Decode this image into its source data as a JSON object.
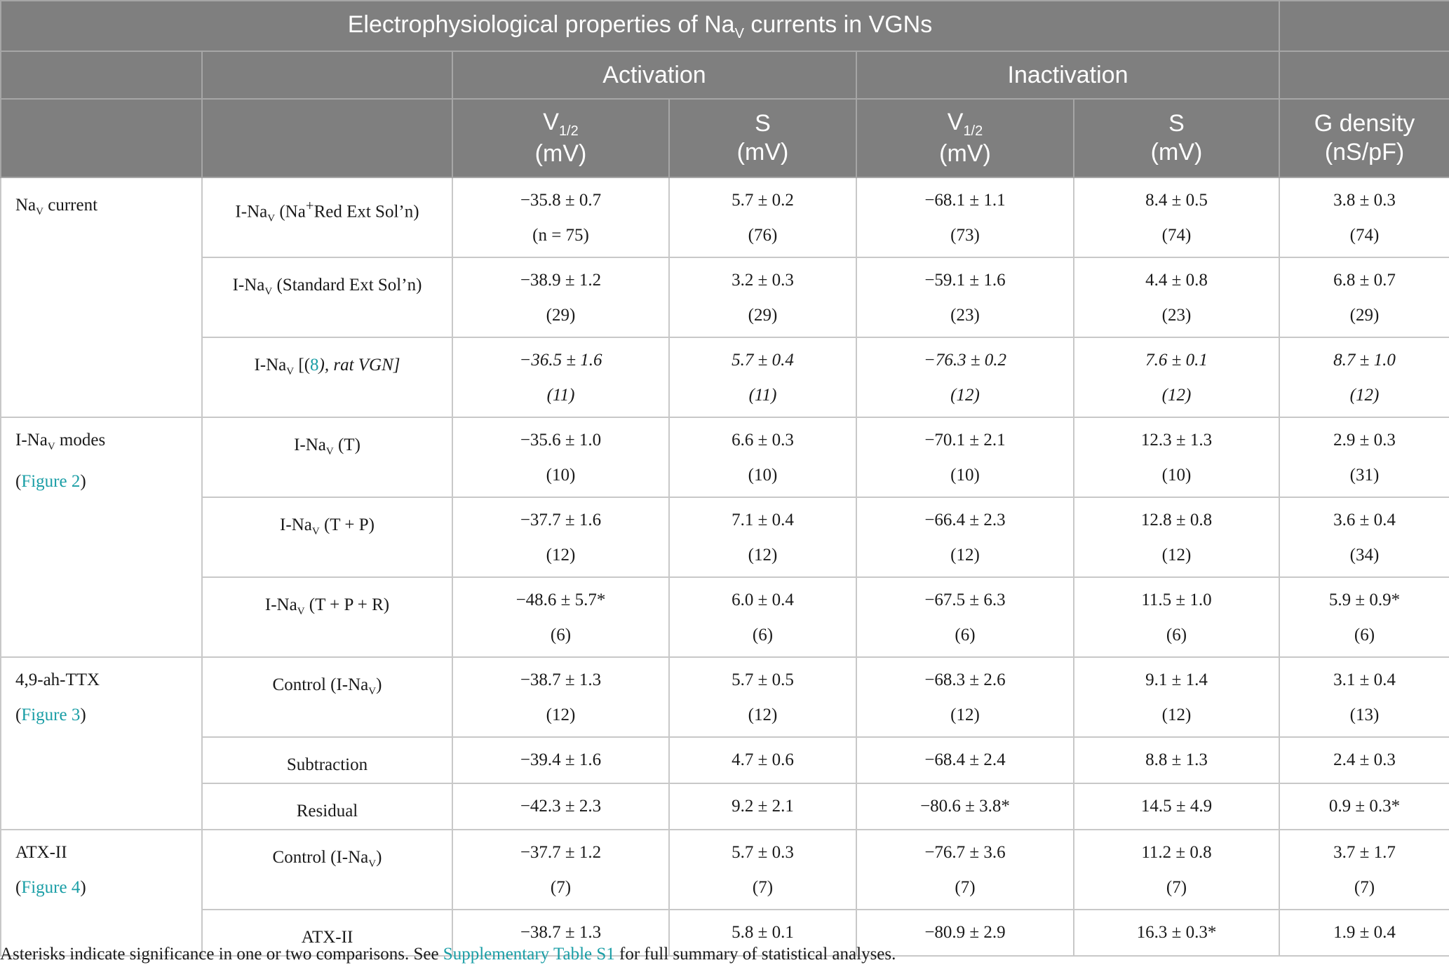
{
  "table": {
    "title": "Electrophysiological properties of Na",
    "title_sub": "V",
    "title_rest": " currents in VGNs",
    "group_activation": "Activation",
    "group_inactivation": "Inactivation",
    "col_v_main": "V",
    "col_v_sub": "1/2",
    "col_mv": "(mV)",
    "col_s": "S",
    "col_g": "G density",
    "col_g_unit": "(nS/pF)"
  },
  "groups": {
    "nav_current": {
      "label": "Na",
      "sub": "V",
      "rest": " current"
    },
    "modes": {
      "line1": "I-Na",
      "sub": "V",
      "rest": " modes",
      "link_open": "(",
      "link": "Figure 2",
      "link_close": ")"
    },
    "ttx": {
      "line1": "4,9-ah-TTX",
      "link_open": "(",
      "link": "Figure 3",
      "link_close": ")"
    },
    "atx": {
      "line1": "ATX-II",
      "link_open": "(",
      "link": "Figure 4",
      "link_close": ")"
    }
  },
  "rows": {
    "r1": {
      "pre": "I-Na",
      "sub": "V",
      "post": " (Na",
      "sup": "+",
      "post2": "Red Ext Sol’n)",
      "vals": [
        "−35.8 ± 0.7",
        "5.7 ± 0.2",
        "−68.1 ± 1.1",
        "8.4 ± 0.5",
        "3.8 ± 0.3"
      ],
      "n": [
        "(n = 75)",
        "(76)",
        "(73)",
        "(74)",
        "(74)"
      ]
    },
    "r2": {
      "pre": "I-Na",
      "sub": "V",
      "post": " (Standard Ext Sol’n)",
      "vals": [
        "−38.9 ± 1.2",
        "3.2 ± 0.3",
        "−59.1 ± 1.6",
        "4.4 ± 0.8",
        "6.8 ± 0.7"
      ],
      "n": [
        "(29)",
        "(29)",
        "(23)",
        "(23)",
        "(29)"
      ]
    },
    "r3": {
      "pre": "I-Na",
      "sub": "V",
      "post": " [(",
      "ref": "8",
      "post2": "), rat VGN]",
      "vals": [
        "−36.5 ± 1.6",
        "5.7 ± 0.4",
        "−76.3 ± 0.2",
        "7.6 ± 0.1",
        "8.7 ± 1.0"
      ],
      "n": [
        "(11)",
        "(11)",
        "(12)",
        "(12)",
        "(12)"
      ]
    },
    "r4": {
      "pre": "I-Na",
      "sub": "V",
      "post": " (T)",
      "vals": [
        "−35.6 ± 1.0",
        "6.6 ± 0.3",
        "−70.1 ± 2.1",
        "12.3 ± 1.3",
        "2.9 ± 0.3"
      ],
      "n": [
        "(10)",
        "(10)",
        "(10)",
        "(10)",
        "(31)"
      ]
    },
    "r5": {
      "pre": "I-Na",
      "sub": "V",
      "post": " (T + P)",
      "vals": [
        "−37.7 ± 1.6",
        "7.1 ± 0.4",
        "−66.4 ± 2.3",
        "12.8 ± 0.8",
        "3.6 ± 0.4"
      ],
      "n": [
        "(12)",
        "(12)",
        "(12)",
        "(12)",
        "(34)"
      ]
    },
    "r6": {
      "pre": "I-Na",
      "sub": "V",
      "post": " (T + P + R)",
      "vals": [
        "−48.6 ± 5.7*",
        "6.0 ± 0.4",
        "−67.5 ± 6.3",
        "11.5 ± 1.0",
        "5.9 ± 0.9*"
      ],
      "n": [
        "(6)",
        "(6)",
        "(6)",
        "(6)",
        "(6)"
      ]
    },
    "r7": {
      "pre": "Control (I-Na",
      "sub": "V",
      "post": ")",
      "vals": [
        "−38.7 ± 1.3",
        "5.7 ± 0.5",
        "−68.3 ± 2.6",
        "9.1 ± 1.4",
        "3.1 ± 0.4"
      ],
      "n": [
        "(12)",
        "(12)",
        "(12)",
        "(12)",
        "(13)"
      ]
    },
    "r8": {
      "label": "Subtraction",
      "vals": [
        "−39.4 ± 1.6",
        "4.7 ± 0.6",
        "−68.4 ± 2.4",
        "8.8 ± 1.3",
        "2.4 ± 0.3"
      ]
    },
    "r9": {
      "label": "Residual",
      "vals": [
        "−42.3 ± 2.3",
        "9.2 ± 2.1",
        "−80.6 ± 3.8*",
        "14.5 ± 4.9",
        "0.9 ± 0.3*"
      ]
    },
    "r10": {
      "pre": "Control (I-Na",
      "sub": "V",
      "post": ")",
      "vals": [
        "−37.7 ± 1.2",
        "5.7 ± 0.3",
        "−76.7 ± 3.6",
        "11.2 ± 0.8",
        "3.7 ± 1.7"
      ],
      "n": [
        "(7)",
        "(7)",
        "(7)",
        "(7)",
        "(7)"
      ]
    },
    "r11": {
      "label": "ATX-II",
      "vals": [
        "−38.7 ± 1.3",
        "5.8 ± 0.1",
        "−80.9 ± 2.9",
        "16.3 ± 0.3*",
        "1.9 ± 0.4"
      ]
    }
  },
  "footnote": {
    "before": "Asterisks indicate significance in one or two comparisons. See ",
    "link": "Supplementary Table S1",
    "after": " for full summary of statistical analyses."
  }
}
